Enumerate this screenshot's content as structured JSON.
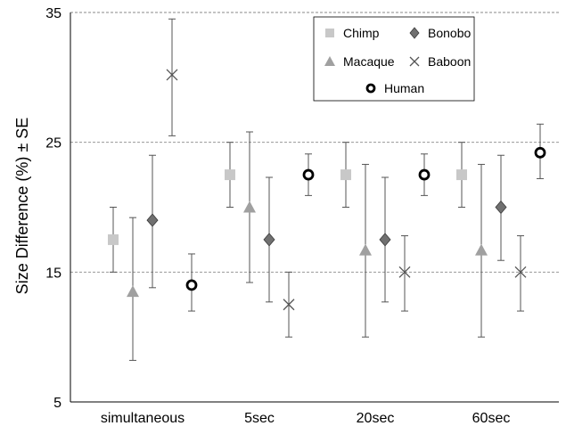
{
  "chart_data": {
    "type": "scatter",
    "title": "",
    "xlabel": "",
    "ylabel": "Size Difference (%) ± SE",
    "ylim": [
      5,
      35
    ],
    "yticks": [
      5,
      15,
      25,
      35
    ],
    "grid": "horizontal dashed at 15, 25, 35",
    "categories": [
      "simultaneous",
      "5sec",
      "20sec",
      "60sec"
    ],
    "legend": {
      "placement": "top-right",
      "border": true
    },
    "series": [
      {
        "name": "Chimp",
        "marker": "square",
        "color": "#c8c8c8",
        "values": [
          17.5,
          22.5,
          22.5,
          22.5
        ],
        "err_low": [
          15.0,
          20.0,
          20.0,
          20.0
        ],
        "err_high": [
          20.0,
          25.0,
          25.0,
          25.0
        ]
      },
      {
        "name": "Macaque",
        "marker": "triangle",
        "color": "#a0a0a0",
        "values": [
          13.5,
          20.0,
          16.7,
          16.7
        ],
        "err_low": [
          8.2,
          14.2,
          10.0,
          10.0
        ],
        "err_high": [
          19.2,
          25.8,
          23.3,
          23.3
        ]
      },
      {
        "name": "Bonobo",
        "marker": "diamond",
        "color": "#707070",
        "values": [
          19.0,
          17.5,
          17.5,
          20.0
        ],
        "err_low": [
          13.8,
          12.7,
          12.7,
          15.9
        ],
        "err_high": [
          24.0,
          22.3,
          22.3,
          24.0
        ]
      },
      {
        "name": "Baboon",
        "marker": "x",
        "color": "#555555",
        "values": [
          30.2,
          12.5,
          15.0,
          15.0
        ],
        "err_low": [
          25.5,
          10.0,
          12.0,
          12.0
        ],
        "err_high": [
          34.5,
          15.0,
          17.8,
          17.8
        ]
      },
      {
        "name": "Human",
        "marker": "circle",
        "color": "#000000",
        "values": [
          14.0,
          22.5,
          22.5,
          24.2
        ],
        "err_low": [
          12.0,
          20.9,
          20.9,
          22.2
        ],
        "err_high": [
          16.4,
          24.1,
          24.1,
          26.4
        ]
      }
    ]
  }
}
